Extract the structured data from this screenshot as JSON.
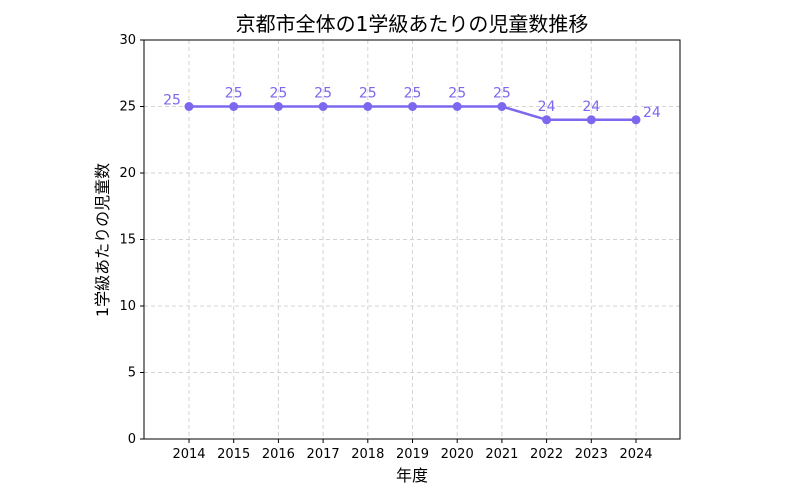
{
  "chart_data": {
    "type": "line",
    "title": "京都市全体の1学級あたりの児童数推移",
    "xlabel": "年度",
    "ylabel": "1学級あたりの児童数",
    "x": [
      "2014",
      "2015",
      "2016",
      "2017",
      "2018",
      "2019",
      "2020",
      "2021",
      "2022",
      "2023",
      "2024"
    ],
    "series": [
      {
        "values": [
          25,
          25,
          25,
          25,
          25,
          25,
          25,
          25,
          24,
          24,
          24
        ],
        "color": "#7b68ee",
        "markers": true
      }
    ],
    "data_labels": [
      "25",
      "25",
      "25",
      "25",
      "25",
      "25",
      "25",
      "25",
      "24",
      "24",
      "24"
    ],
    "ylim": [
      0,
      30
    ],
    "yticks": [
      "0",
      "5",
      "10",
      "15",
      "20",
      "25",
      "30"
    ],
    "grid": true,
    "grid_style": "dashed",
    "legend": "none"
  }
}
